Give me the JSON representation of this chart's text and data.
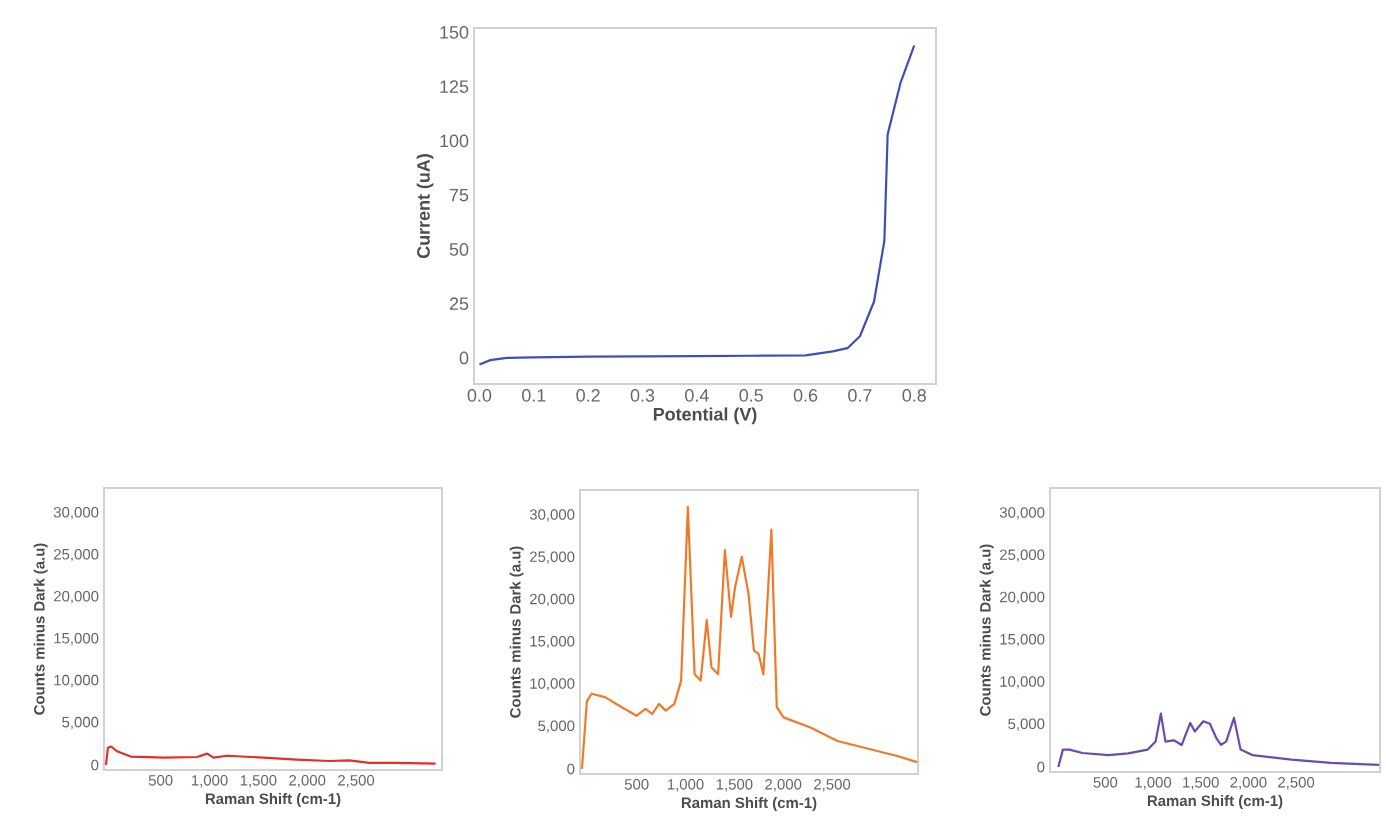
{
  "chart_data": [
    {
      "type": "line",
      "xlabel": "Potential (V)",
      "ylabel": "Current (uA)",
      "xlim": [
        -0.01,
        0.84
      ],
      "ylim": [
        -12,
        152
      ],
      "xticks": [
        {
          "value": 0,
          "label": "0.0"
        },
        0.1,
        0.2,
        0.3,
        0.4,
        0.5,
        0.6,
        0.7,
        0.8
      ],
      "yticks": [
        0,
        25,
        50,
        75,
        100,
        125,
        150
      ],
      "color": "#3f4fb5",
      "x": [
        0,
        0.02,
        0.05,
        0.1,
        0.2,
        0.3,
        0.4,
        0.5,
        0.6,
        0.65,
        0.677,
        0.7,
        0.726,
        0.745,
        0.751,
        0.775,
        0.8
      ],
      "values": [
        -3,
        -1,
        0,
        0.3,
        0.6,
        0.7,
        0.8,
        1,
        1.2,
        3,
        4.5,
        10,
        26,
        54,
        103,
        127,
        144
      ]
    },
    {
      "type": "line",
      "xlabel": "Raman Shift (cm-1)",
      "ylabel": "Counts minus Dark (a.u)",
      "xlim": [
        -80,
        3380
      ],
      "ylim": [
        -600,
        33000
      ],
      "xticks": [
        500,
        {
          "value": 1000,
          "label": "1,000"
        },
        {
          "value": 1500,
          "label": "1,500"
        },
        {
          "value": 2000,
          "label": "2,000"
        },
        {
          "value": 2500,
          "label": "2,500"
        }
      ],
      "yticks": [
        0,
        {
          "value": 5000,
          "label": "5,000"
        },
        {
          "value": 10000,
          "label": "10,000"
        },
        {
          "value": 15000,
          "label": "15,000"
        },
        {
          "value": 20000,
          "label": "20,000"
        },
        {
          "value": 25000,
          "label": "25,000"
        },
        {
          "value": 30000,
          "label": "30,000"
        }
      ],
      "color": "#e0302a",
      "x": [
        -60,
        -40,
        -8,
        59,
        195,
        534,
        873,
        975,
        1042,
        1178,
        1551,
        1890,
        2229,
        2432,
        2636,
        2907,
        3314
      ],
      "values": [
        0,
        2050,
        2200,
        1600,
        1000,
        870,
        950,
        1350,
        870,
        1100,
        870,
        630,
        470,
        550,
        240,
        240,
        160
      ]
    },
    {
      "type": "line",
      "xlabel": "Raman Shift (cm-1)",
      "ylabel": "Counts minus Dark (a.u)",
      "xlim": [
        -80,
        3380
      ],
      "ylim": [
        -600,
        33000
      ],
      "xticks": [
        500,
        {
          "value": 1000,
          "label": "1,000"
        },
        {
          "value": 1500,
          "label": "1,500"
        },
        {
          "value": 2000,
          "label": "2,000"
        },
        {
          "value": 2500,
          "label": "2,500"
        }
      ],
      "yticks": [
        0,
        {
          "value": 5000,
          "label": "5,000"
        },
        {
          "value": 10000,
          "label": "10,000"
        },
        {
          "value": 15000,
          "label": "15,000"
        },
        {
          "value": 20000,
          "label": "20,000"
        },
        {
          "value": 25000,
          "label": "25,000"
        },
        {
          "value": 30000,
          "label": "30,000"
        }
      ],
      "color": "#f07a2a",
      "x": [
        -60,
        -10,
        38,
        176,
        348,
        500,
        590,
        659,
        728,
        797,
        886,
        955,
        1024,
        1093,
        1155,
        1217,
        1266,
        1334,
        1403,
        1466,
        1507,
        1576,
        1645,
        1700,
        1748,
        1797,
        1879,
        1934,
        2003,
        2279,
        2555,
        2831,
        3176,
        3370
      ],
      "values": [
        0,
        8000,
        8900,
        8500,
        7300,
        6300,
        7100,
        6500,
        7700,
        6900,
        7700,
        10450,
        31000,
        11200,
        10450,
        17600,
        12000,
        11200,
        25900,
        18000,
        21500,
        25100,
        20700,
        14000,
        13600,
        11200,
        28300,
        7300,
        6100,
        4900,
        3300,
        2500,
        1500,
        800
      ]
    },
    {
      "type": "line",
      "xlabel": "Raman Shift (cm-1)",
      "ylabel": "Counts minus Dark (a.u)",
      "xlim": [
        -80,
        3380
      ],
      "ylim": [
        -600,
        33000
      ],
      "xticks": [
        500,
        {
          "value": 1000,
          "label": "1,000"
        },
        {
          "value": 1500,
          "label": "1,500"
        },
        {
          "value": 2000,
          "label": "2,000"
        },
        {
          "value": 2500,
          "label": "2,500"
        }
      ],
      "yticks": [
        0,
        {
          "value": 5000,
          "label": "5,000"
        },
        {
          "value": 10000,
          "label": "10,000"
        },
        {
          "value": 15000,
          "label": "15,000"
        },
        {
          "value": 20000,
          "label": "20,000"
        },
        {
          "value": 25000,
          "label": "25,000"
        },
        {
          "value": 30000,
          "label": "30,000"
        }
      ],
      "color": "#6a4bb0",
      "x": [
        7,
        55,
        123,
        260,
        534,
        740,
        945,
        1027,
        1082,
        1130,
        1219,
        1301,
        1390,
        1438,
        1527,
        1596,
        1664,
        1712,
        1767,
        1849,
        1918,
        2041,
        2452,
        2863,
        3370
      ],
      "values": [
        0,
        2050,
        2050,
        1650,
        1400,
        1600,
        2050,
        3000,
        6300,
        3000,
        3150,
        2600,
        5200,
        4200,
        5400,
        5100,
        3400,
        2600,
        3000,
        5800,
        2050,
        1400,
        870,
        470,
        240
      ]
    }
  ]
}
